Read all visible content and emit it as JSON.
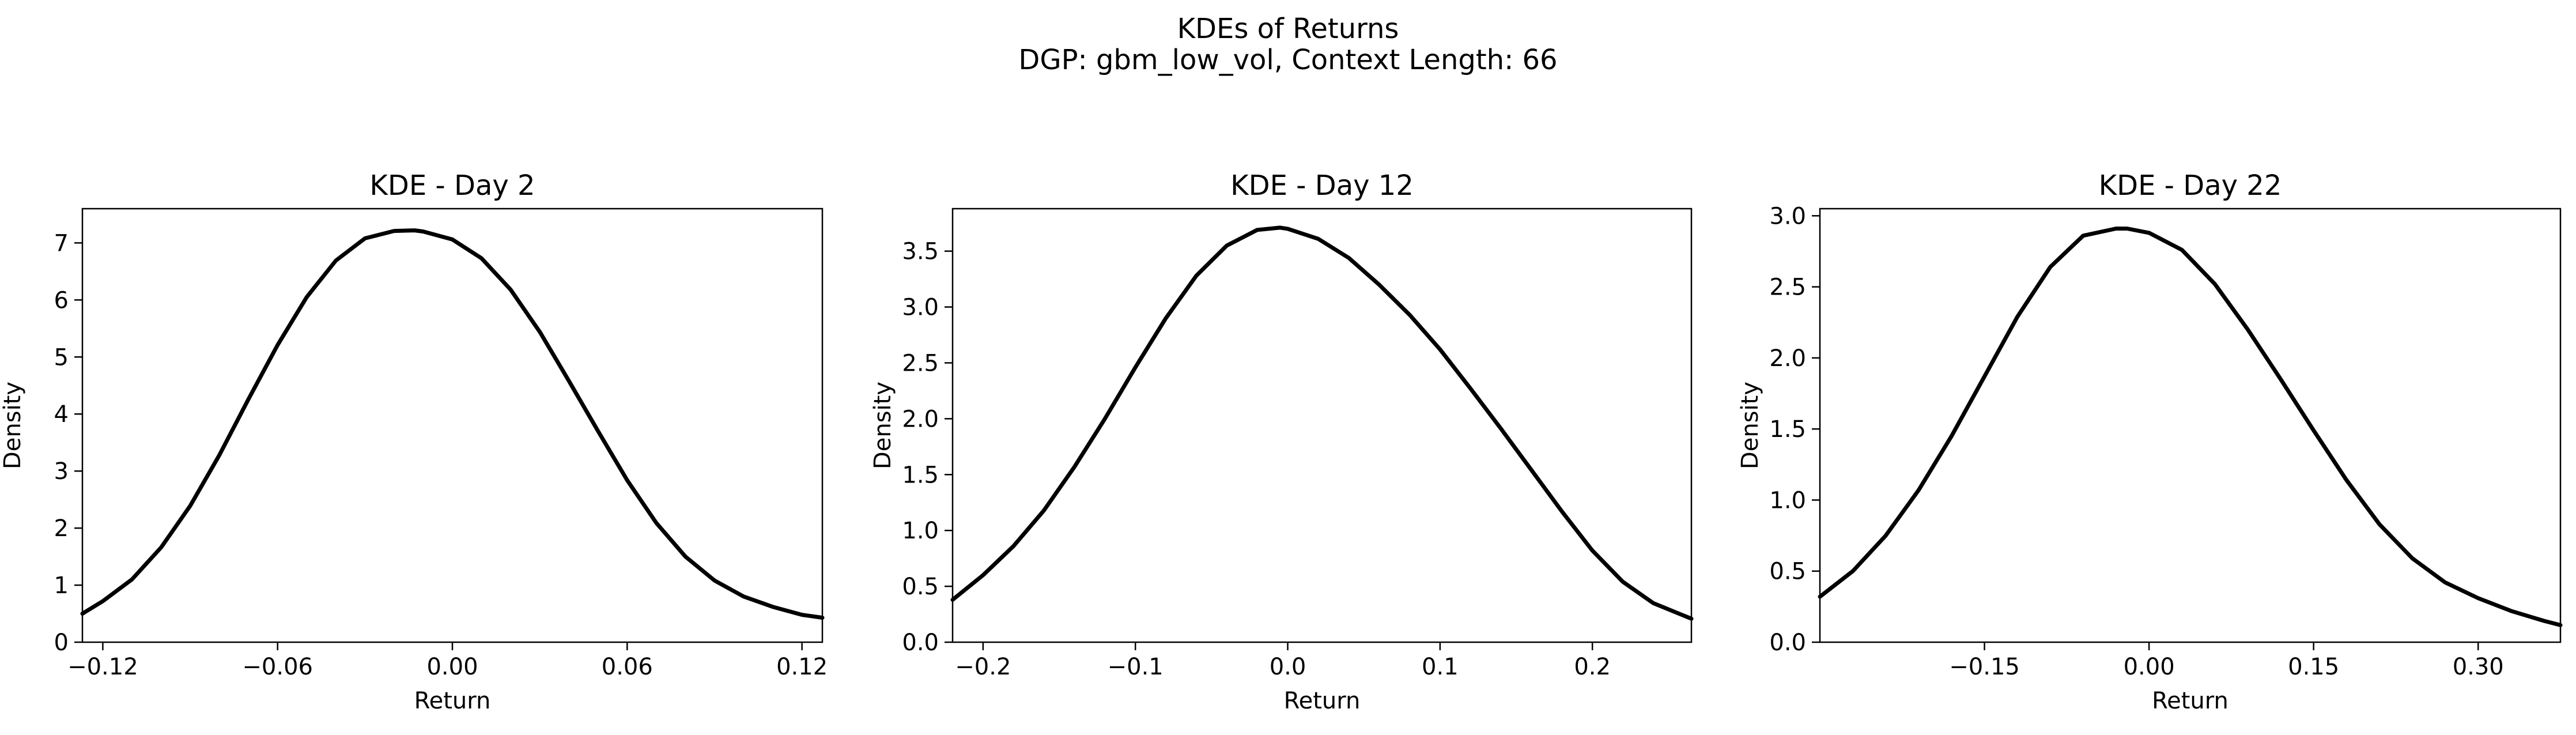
{
  "figure": {
    "title_line1": "KDEs of Returns",
    "title_line2": "DGP: gbm_low_vol, Context Length: 66"
  },
  "chart_data": [
    {
      "type": "line",
      "title": "KDE - Day 2",
      "xlabel": "Return",
      "ylabel": "Density",
      "xlim": [
        -0.127,
        0.127
      ],
      "ylim": [
        0,
        7.6
      ],
      "xticks": [
        -0.12,
        -0.06,
        0.0,
        0.06,
        0.12
      ],
      "xtick_labels": [
        "−0.12",
        "−0.06",
        "0.00",
        "0.06",
        "0.12"
      ],
      "yticks": [
        0,
        1,
        2,
        3,
        4,
        5,
        6,
        7
      ],
      "ytick_labels": [
        "0",
        "1",
        "2",
        "3",
        "4",
        "5",
        "6",
        "7"
      ],
      "grid": false,
      "line_color": "#000000",
      "series": [
        {
          "x": [
            -0.127,
            -0.12,
            -0.11,
            -0.1,
            -0.09,
            -0.08,
            -0.07,
            -0.06,
            -0.05,
            -0.04,
            -0.03,
            -0.02,
            -0.013,
            -0.01,
            0.0,
            0.01,
            0.02,
            0.03,
            0.04,
            0.05,
            0.06,
            0.07,
            0.08,
            0.09,
            0.1,
            0.11,
            0.12,
            0.127
          ],
          "y": [
            0.5,
            0.72,
            1.1,
            1.66,
            2.39,
            3.28,
            4.26,
            5.21,
            6.05,
            6.69,
            7.08,
            7.21,
            7.22,
            7.2,
            7.06,
            6.73,
            6.18,
            5.44,
            4.58,
            3.7,
            2.84,
            2.09,
            1.5,
            1.08,
            0.8,
            0.62,
            0.48,
            0.43
          ]
        }
      ]
    },
    {
      "type": "line",
      "title": "KDE - Day 12",
      "xlabel": "Return",
      "ylabel": "Density",
      "xlim": [
        -0.22,
        0.265
      ],
      "ylim": [
        0,
        3.88
      ],
      "xticks": [
        -0.2,
        -0.1,
        0.0,
        0.1,
        0.2
      ],
      "xtick_labels": [
        "−0.2",
        "−0.1",
        "0.0",
        "0.1",
        "0.2"
      ],
      "yticks": [
        0,
        0.5,
        1.0,
        1.5,
        2.0,
        2.5,
        3.0,
        3.5
      ],
      "ytick_labels": [
        "0.0",
        "0.5",
        "1.0",
        "1.5",
        "2.0",
        "2.5",
        "3.0",
        "3.5"
      ],
      "grid": false,
      "line_color": "#000000",
      "series": [
        {
          "x": [
            -0.22,
            -0.2,
            -0.18,
            -0.16,
            -0.14,
            -0.12,
            -0.1,
            -0.08,
            -0.06,
            -0.04,
            -0.02,
            -0.005,
            0.0,
            0.02,
            0.04,
            0.06,
            0.08,
            0.1,
            0.12,
            0.14,
            0.16,
            0.18,
            0.2,
            0.22,
            0.24,
            0.265
          ],
          "y": [
            0.38,
            0.6,
            0.86,
            1.18,
            1.57,
            2.0,
            2.46,
            2.9,
            3.28,
            3.55,
            3.69,
            3.71,
            3.7,
            3.61,
            3.44,
            3.2,
            2.93,
            2.62,
            2.27,
            1.91,
            1.54,
            1.17,
            0.82,
            0.54,
            0.35,
            0.21
          ]
        }
      ]
    },
    {
      "type": "line",
      "title": "KDE - Day 22",
      "xlabel": "Return",
      "ylabel": "Density",
      "xlim": [
        -0.3,
        0.375
      ],
      "ylim": [
        0,
        3.05
      ],
      "xticks": [
        -0.15,
        0.0,
        0.15,
        0.3
      ],
      "xtick_labels": [
        "−0.15",
        "0.00",
        "0.15",
        "0.30"
      ],
      "yticks": [
        0,
        0.5,
        1.0,
        1.5,
        2.0,
        2.5,
        3.0
      ],
      "ytick_labels": [
        "0.0",
        "0.5",
        "1.0",
        "1.5",
        "2.0",
        "2.5",
        "3.0"
      ],
      "grid": false,
      "line_color": "#000000",
      "series": [
        {
          "x": [
            -0.3,
            -0.27,
            -0.24,
            -0.21,
            -0.18,
            -0.15,
            -0.12,
            -0.09,
            -0.06,
            -0.03,
            -0.02,
            0.0,
            0.03,
            0.06,
            0.09,
            0.12,
            0.15,
            0.18,
            0.21,
            0.24,
            0.27,
            0.3,
            0.33,
            0.36,
            0.375
          ],
          "y": [
            0.32,
            0.5,
            0.75,
            1.07,
            1.45,
            1.87,
            2.29,
            2.64,
            2.86,
            2.91,
            2.91,
            2.88,
            2.76,
            2.52,
            2.2,
            1.85,
            1.49,
            1.14,
            0.83,
            0.59,
            0.42,
            0.31,
            0.22,
            0.15,
            0.12
          ]
        }
      ]
    }
  ]
}
